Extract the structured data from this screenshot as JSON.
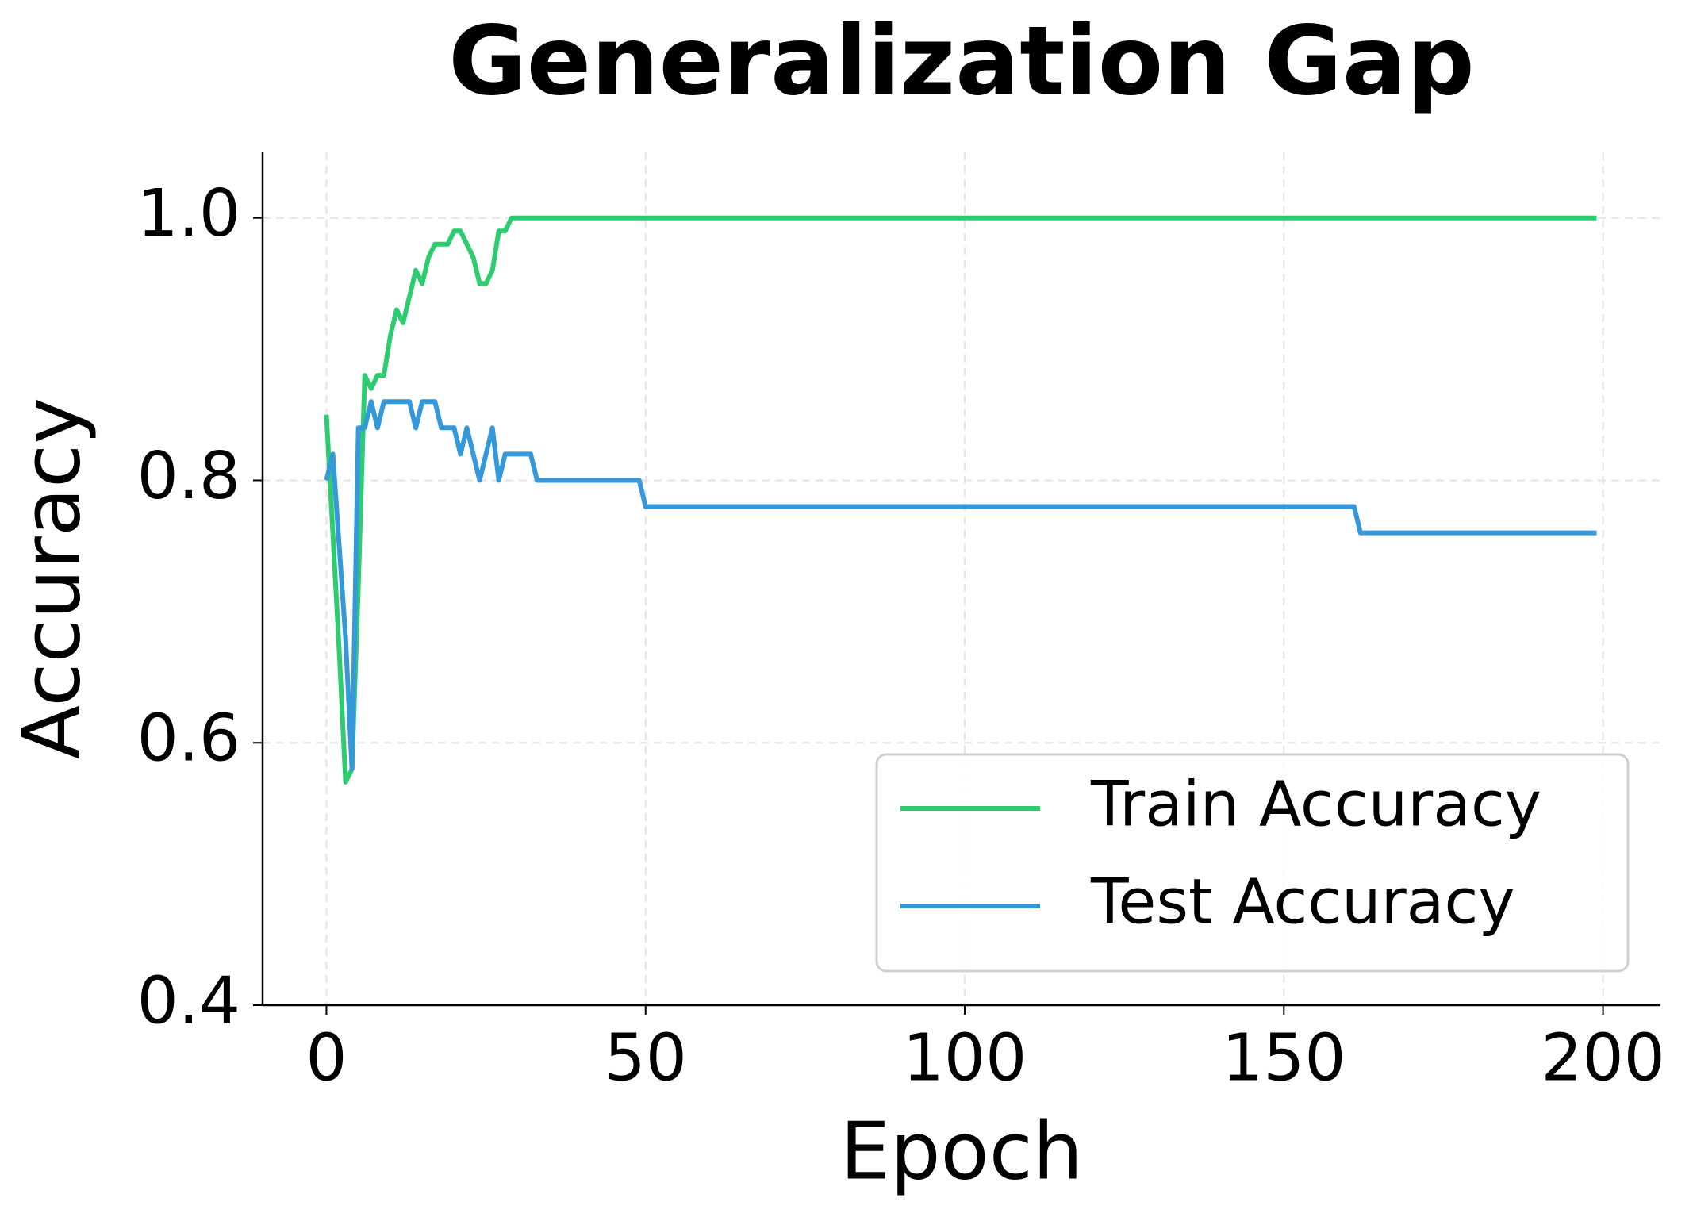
{
  "chart_data": {
    "type": "line",
    "title": "Generalization Gap",
    "x_label": "Epoch",
    "y_label": "Accuracy",
    "x": [
      0,
      1,
      2,
      3,
      4,
      5,
      6,
      7,
      8,
      9,
      10,
      11,
      12,
      13,
      14,
      15,
      16,
      17,
      18,
      19,
      20,
      21,
      22,
      23,
      24,
      25,
      26,
      27,
      28,
      29,
      30,
      31,
      32,
      33,
      34,
      35,
      36,
      37,
      38,
      39,
      40,
      41,
      42,
      43,
      44,
      45,
      46,
      47,
      48,
      49,
      50,
      51,
      52,
      53,
      54,
      55,
      56,
      57,
      58,
      59,
      60,
      61,
      62,
      63,
      64,
      65,
      66,
      67,
      68,
      69,
      70,
      71,
      72,
      73,
      74,
      75,
      76,
      77,
      78,
      79,
      80,
      81,
      82,
      83,
      84,
      85,
      86,
      87,
      88,
      89,
      90,
      91,
      92,
      93,
      94,
      95,
      96,
      97,
      98,
      99,
      100,
      101,
      102,
      103,
      104,
      105,
      106,
      107,
      108,
      109,
      110,
      111,
      112,
      113,
      114,
      115,
      116,
      117,
      118,
      119,
      120,
      121,
      122,
      123,
      124,
      125,
      126,
      127,
      128,
      129,
      130,
      131,
      132,
      133,
      134,
      135,
      136,
      137,
      138,
      139,
      140,
      141,
      142,
      143,
      144,
      145,
      146,
      147,
      148,
      149,
      150,
      151,
      152,
      153,
      154,
      155,
      156,
      157,
      158,
      159,
      160,
      161,
      162,
      163,
      164,
      165,
      166,
      167,
      168,
      169,
      170,
      171,
      172,
      173,
      174,
      175,
      176,
      177,
      178,
      179,
      180,
      181,
      182,
      183,
      184,
      185,
      186,
      187,
      188,
      189,
      190,
      191,
      192,
      193,
      194,
      195,
      196,
      197,
      198,
      199
    ],
    "series": [
      {
        "name": "Train Accuracy",
        "color": "#2ecc71",
        "values": [
          0.85,
          0.76,
          0.67,
          0.57,
          0.58,
          0.72,
          0.88,
          0.87,
          0.88,
          0.88,
          0.91,
          0.93,
          0.92,
          0.94,
          0.96,
          0.95,
          0.97,
          0.98,
          0.98,
          0.98,
          0.99,
          0.99,
          0.98,
          0.97,
          0.95,
          0.95,
          0.96,
          0.99,
          0.99,
          1,
          1,
          1,
          1,
          1,
          1,
          1,
          1,
          1,
          1,
          1,
          1,
          1,
          1,
          1,
          1,
          1,
          1,
          1,
          1,
          1,
          1,
          1,
          1,
          1,
          1,
          1,
          1,
          1,
          1,
          1,
          1,
          1,
          1,
          1,
          1,
          1,
          1,
          1,
          1,
          1,
          1,
          1,
          1,
          1,
          1,
          1,
          1,
          1,
          1,
          1,
          1,
          1,
          1,
          1,
          1,
          1,
          1,
          1,
          1,
          1,
          1,
          1,
          1,
          1,
          1,
          1,
          1,
          1,
          1,
          1,
          1,
          1,
          1,
          1,
          1,
          1,
          1,
          1,
          1,
          1,
          1,
          1,
          1,
          1,
          1,
          1,
          1,
          1,
          1,
          1,
          1,
          1,
          1,
          1,
          1,
          1,
          1,
          1,
          1,
          1,
          1,
          1,
          1,
          1,
          1,
          1,
          1,
          1,
          1,
          1,
          1,
          1,
          1,
          1,
          1,
          1,
          1,
          1,
          1,
          1,
          1,
          1,
          1,
          1,
          1,
          1,
          1,
          1,
          1,
          1,
          1,
          1,
          1,
          1,
          1,
          1,
          1,
          1,
          1,
          1,
          1,
          1,
          1,
          1,
          1,
          1,
          1,
          1,
          1,
          1,
          1,
          1,
          1,
          1,
          1,
          1,
          1,
          1,
          1,
          1,
          1,
          1,
          1,
          1,
          1,
          1,
          1,
          1,
          1,
          1
        ]
      },
      {
        "name": "Test Accuracy",
        "color": "#3498db",
        "values": [
          0.8,
          0.82,
          0.75,
          0.68,
          0.58,
          0.84,
          0.84,
          0.86,
          0.84,
          0.86,
          0.86,
          0.86,
          0.86,
          0.86,
          0.84,
          0.86,
          0.86,
          0.86,
          0.84,
          0.84,
          0.84,
          0.82,
          0.84,
          0.82,
          0.8,
          0.82,
          0.84,
          0.8,
          0.82,
          0.82,
          0.82,
          0.82,
          0.82,
          0.8,
          0.8,
          0.8,
          0.8,
          0.8,
          0.8,
          0.8,
          0.8,
          0.8,
          0.8,
          0.8,
          0.8,
          0.8,
          0.8,
          0.8,
          0.8,
          0.8,
          0.78,
          0.78,
          0.78,
          0.78,
          0.78,
          0.78,
          0.78,
          0.78,
          0.78,
          0.78,
          0.78,
          0.78,
          0.78,
          0.78,
          0.78,
          0.78,
          0.78,
          0.78,
          0.78,
          0.78,
          0.78,
          0.78,
          0.78,
          0.78,
          0.78,
          0.78,
          0.78,
          0.78,
          0.78,
          0.78,
          0.78,
          0.78,
          0.78,
          0.78,
          0.78,
          0.78,
          0.78,
          0.78,
          0.78,
          0.78,
          0.78,
          0.78,
          0.78,
          0.78,
          0.78,
          0.78,
          0.78,
          0.78,
          0.78,
          0.78,
          0.78,
          0.78,
          0.78,
          0.78,
          0.78,
          0.78,
          0.78,
          0.78,
          0.78,
          0.78,
          0.78,
          0.78,
          0.78,
          0.78,
          0.78,
          0.78,
          0.78,
          0.78,
          0.78,
          0.78,
          0.78,
          0.78,
          0.78,
          0.78,
          0.78,
          0.78,
          0.78,
          0.78,
          0.78,
          0.78,
          0.78,
          0.78,
          0.78,
          0.78,
          0.78,
          0.78,
          0.78,
          0.78,
          0.78,
          0.78,
          0.78,
          0.78,
          0.78,
          0.78,
          0.78,
          0.78,
          0.78,
          0.78,
          0.78,
          0.78,
          0.78,
          0.78,
          0.78,
          0.78,
          0.78,
          0.78,
          0.78,
          0.78,
          0.78,
          0.78,
          0.78,
          0.78,
          0.76,
          0.76,
          0.76,
          0.76,
          0.76,
          0.76,
          0.76,
          0.76,
          0.76,
          0.76,
          0.76,
          0.76,
          0.76,
          0.76,
          0.76,
          0.76,
          0.76,
          0.76,
          0.76,
          0.76,
          0.76,
          0.76,
          0.76,
          0.76,
          0.76,
          0.76,
          0.76,
          0.76,
          0.76,
          0.76,
          0.76,
          0.76,
          0.76,
          0.76,
          0.76,
          0.76,
          0.76,
          0.76
        ]
      }
    ],
    "xlim": [
      -10,
      209
    ],
    "ylim": [
      0.4,
      1.05
    ],
    "xticks": [
      0,
      50,
      100,
      150,
      200
    ],
    "yticks": [
      0.4,
      0.6,
      0.8,
      {
        "value": 1,
        "label": "1.0"
      }
    ],
    "grid": true,
    "legend": "lower right"
  }
}
